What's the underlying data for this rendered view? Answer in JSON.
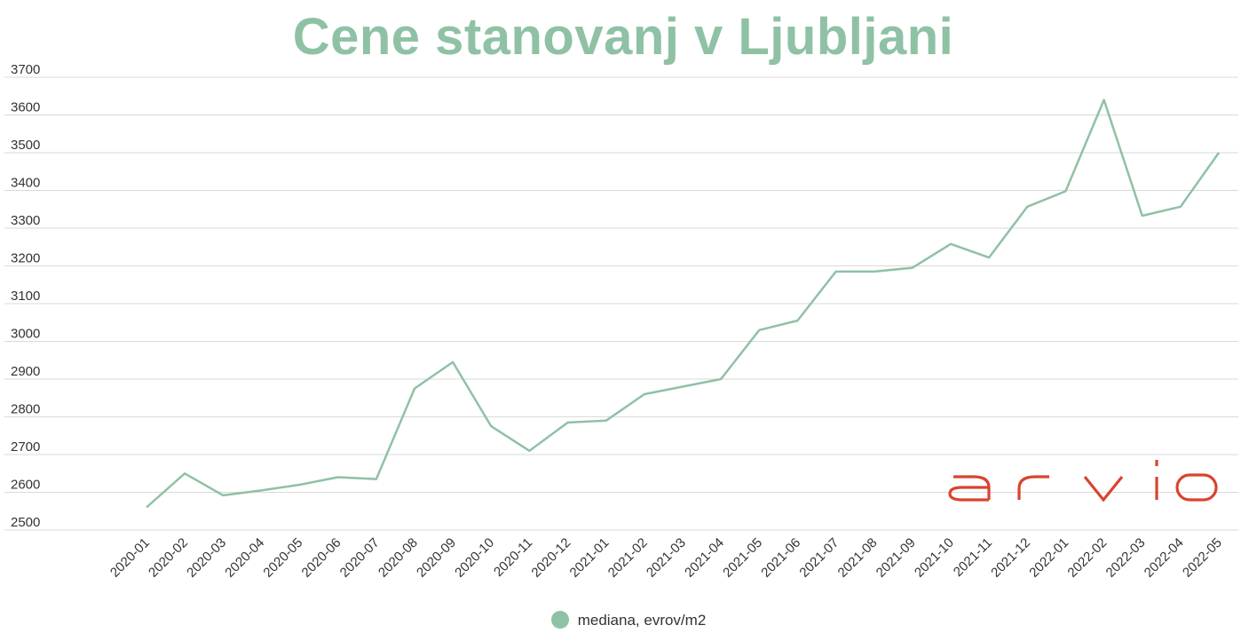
{
  "chart_data": {
    "type": "line",
    "title": "Cene stanovanj v Ljubljani",
    "xlabel": "",
    "ylabel": "",
    "ylim": [
      2500,
      3700
    ],
    "yticks": [
      2500,
      2600,
      2700,
      2800,
      2900,
      3000,
      3100,
      3200,
      3300,
      3400,
      3500,
      3600,
      3700
    ],
    "grid": true,
    "legend_position": "bottom",
    "categories": [
      "2020-01",
      "2020-02",
      "2020-03",
      "2020-04",
      "2020-05",
      "2020-06",
      "2020-07",
      "2020-08",
      "2020-09",
      "2020-10",
      "2020-11",
      "2020-12",
      "2021-01",
      "2021-02",
      "2021-03",
      "2021-04",
      "2021-05",
      "2021-06",
      "2021-07",
      "2021-08",
      "2021-09",
      "2021-10",
      "2021-11",
      "2021-12",
      "2022-01",
      "2022-02",
      "2022-03",
      "2022-04",
      "2022-05"
    ],
    "series": [
      {
        "name": "mediana, evrov/m2",
        "color": "#8fc1a5",
        "values": [
          2560,
          2650,
          2592,
          2605,
          2620,
          2640,
          2635,
          2875,
          2945,
          2775,
          2710,
          2785,
          2790,
          2860,
          2880,
          2900,
          3030,
          3055,
          3185,
          3185,
          3195,
          3258,
          3222,
          3357,
          3398,
          3640,
          3333,
          3357,
          3500
        ]
      }
    ]
  },
  "logo": {
    "text": "arvio",
    "color": "#d9432f"
  }
}
